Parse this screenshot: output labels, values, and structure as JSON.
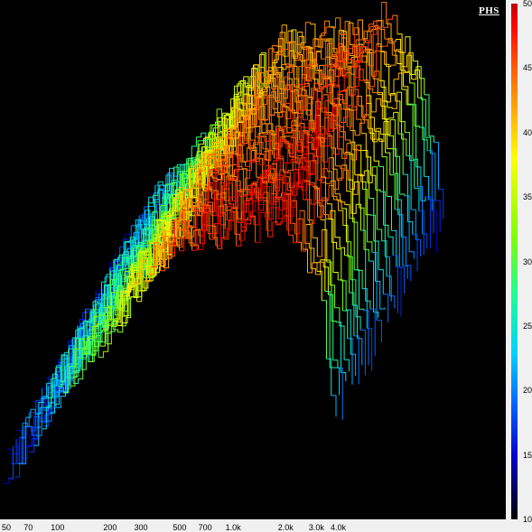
{
  "badge": "PHS",
  "chart_data": {
    "type": "waterfall-3d",
    "x_axis": {
      "scale": "log",
      "range": [
        50,
        4000
      ],
      "tick_labels": [
        "50",
        "70",
        "100",
        "200",
        "300",
        "500",
        "700",
        "1.0k",
        "2.0k",
        "3.0k",
        "4.0k"
      ],
      "tick_values": [
        50,
        70,
        100,
        200,
        300,
        500,
        700,
        1000,
        2000,
        3000,
        4000
      ]
    },
    "colorbar": {
      "range": [
        10,
        50
      ],
      "tick_labels": [
        "50",
        "45",
        "40",
        "35",
        "30",
        "25",
        "20",
        "15",
        "10"
      ],
      "tick_values": [
        50,
        45,
        40,
        35,
        30,
        25,
        20,
        15,
        10
      ]
    },
    "slices": 34,
    "envelope": {
      "description_points_freq_level": [
        [
          50,
          14
        ],
        [
          100,
          26
        ],
        [
          200,
          34
        ],
        [
          300,
          40
        ],
        [
          500,
          46
        ],
        [
          1000,
          47
        ],
        [
          2000,
          49
        ],
        [
          3000,
          42
        ],
        [
          4000,
          22
        ]
      ]
    }
  }
}
